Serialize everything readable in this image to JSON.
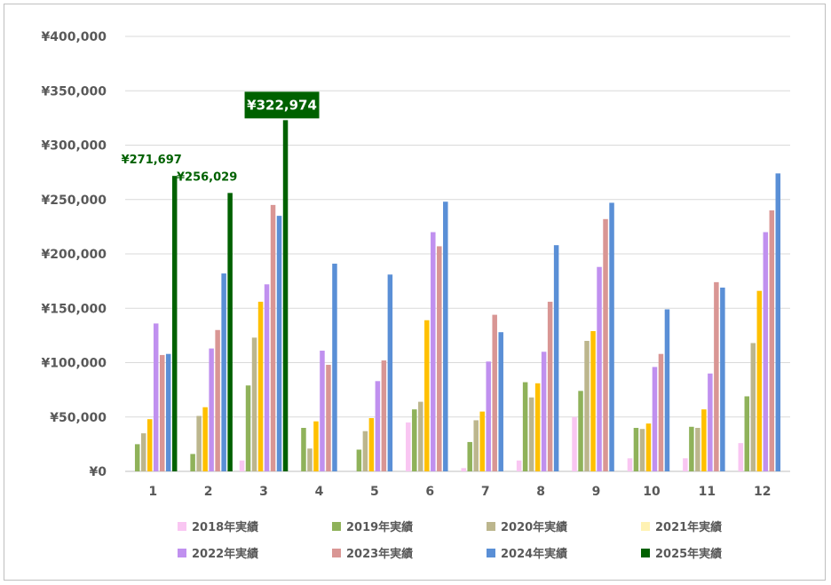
{
  "chart_data": {
    "type": "bar",
    "title": "",
    "xlabel": "",
    "ylabel": "",
    "ylim": [
      0,
      400000
    ],
    "y_tick_step": 50000,
    "y_tick_labels": [
      "¥0",
      "¥50,000",
      "¥100,000",
      "¥150,000",
      "¥200,000",
      "¥250,000",
      "¥300,000",
      "¥350,000",
      "¥400,000"
    ],
    "grid": true,
    "legend_position": "bottom",
    "categories": [
      "1",
      "2",
      "3",
      "4",
      "5",
      "6",
      "7",
      "8",
      "9",
      "10",
      "11",
      "12"
    ],
    "series": [
      {
        "name": "2018年実績",
        "color": "#f9c6f2",
        "values": [
          0,
          0,
          10000,
          0,
          0,
          45000,
          3000,
          10000,
          50000,
          12000,
          12000,
          26000
        ]
      },
      {
        "name": "2019年実績",
        "color": "#8fb25a",
        "values": [
          25000,
          16000,
          79000,
          40000,
          20000,
          57000,
          27000,
          82000,
          74000,
          40000,
          41000,
          69000
        ]
      },
      {
        "name": "2020年実績",
        "color": "#bcb68d",
        "values": [
          35000,
          51000,
          123000,
          21000,
          37000,
          64000,
          47000,
          68000,
          120000,
          39000,
          40000,
          118000
        ]
      },
      {
        "name": "2021年実績",
        "color": "#ffc000",
        "values": [
          48000,
          59000,
          156000,
          46000,
          49000,
          139000,
          55000,
          81000,
          129000,
          44000,
          57000,
          166000
        ]
      },
      {
        "name": "2022年実績",
        "color": "#c090ef",
        "values": [
          136000,
          113000,
          172000,
          111000,
          83000,
          220000,
          101000,
          110000,
          188000,
          96000,
          90000,
          220000
        ]
      },
      {
        "name": "2023年実績",
        "color": "#d99694",
        "values": [
          107000,
          130000,
          245000,
          98000,
          102000,
          207000,
          144000,
          156000,
          232000,
          108000,
          174000,
          240000
        ]
      },
      {
        "name": "2024年実績",
        "color": "#5a8fd6",
        "values": [
          108000,
          182000,
          235000,
          191000,
          181000,
          248000,
          128000,
          208000,
          247000,
          149000,
          169000,
          274000
        ]
      },
      {
        "name": "2025年実績",
        "color": "#006100",
        "values": [
          271697,
          256029,
          322974,
          null,
          null,
          null,
          null,
          null,
          null,
          null,
          null,
          null
        ]
      }
    ],
    "legend_swatch_colors": [
      "#f9c6f2",
      "#8fb25a",
      "#bcb68d",
      "#fff2b3",
      "#c090ef",
      "#d99694",
      "#5a8fd6",
      "#006100"
    ],
    "annotations": [
      {
        "category": "1",
        "series": "2025年実績",
        "text": "¥271,697",
        "boxed": false
      },
      {
        "category": "2",
        "series": "2025年実績",
        "text": "¥256,029",
        "boxed": false
      },
      {
        "category": "3",
        "series": "2025年実績",
        "text": "¥322,974",
        "boxed": true
      }
    ]
  }
}
